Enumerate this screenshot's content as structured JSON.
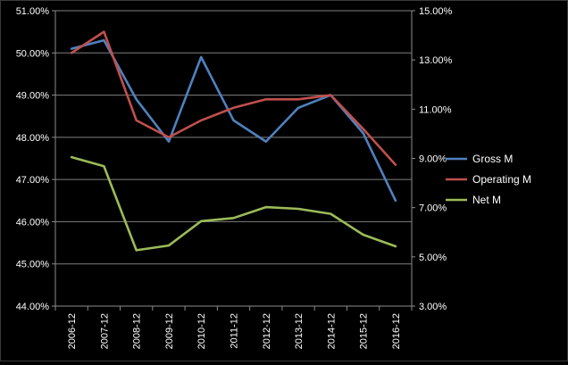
{
  "chart_data": {
    "type": "line",
    "categories": [
      "2006-12",
      "2007-12",
      "2008-12",
      "2009-12",
      "2010-12",
      "2011-12",
      "2012-12",
      "2013-12",
      "2014-12",
      "2015-12",
      "2016-12"
    ],
    "y_left": {
      "range": [
        0.44,
        0.51
      ],
      "ticks": [
        0.44,
        0.45,
        0.46,
        0.47,
        0.48,
        0.49,
        0.5,
        0.51
      ],
      "tick_labels": [
        "44.00%",
        "45.00%",
        "46.00%",
        "47.00%",
        "48.00%",
        "49.00%",
        "50.00%",
        "51.00%"
      ]
    },
    "y_right": {
      "range": [
        0.03,
        0.15
      ],
      "ticks": [
        0.03,
        0.05,
        0.07,
        0.09,
        0.11,
        0.13,
        0.15
      ],
      "tick_labels": [
        "3.00%",
        "5.00%",
        "7.00%",
        "9.00%",
        "11.00%",
        "13.00%",
        "15.00%"
      ]
    },
    "grid": true,
    "legend_position": "right",
    "series": [
      {
        "name": "Gross M",
        "axis": "left",
        "color": "#4f81bd",
        "values": [
          0.501,
          0.503,
          0.489,
          0.479,
          0.499,
          0.484,
          0.479,
          0.487,
          0.49,
          0.481,
          0.465
        ]
      },
      {
        "name": "Operating M",
        "axis": "left",
        "color": "#c0504d",
        "values": [
          0.5,
          0.505,
          0.484,
          0.48,
          0.484,
          0.487,
          0.489,
          0.489,
          0.49,
          0.482,
          0.4735
        ]
      },
      {
        "name": "Net M",
        "axis": "right",
        "color": "#9bbb59",
        "values": [
          0.0905,
          0.0868,
          0.0527,
          0.0546,
          0.0645,
          0.0658,
          0.0702,
          0.0695,
          0.0675,
          0.059,
          0.0543
        ]
      }
    ]
  }
}
